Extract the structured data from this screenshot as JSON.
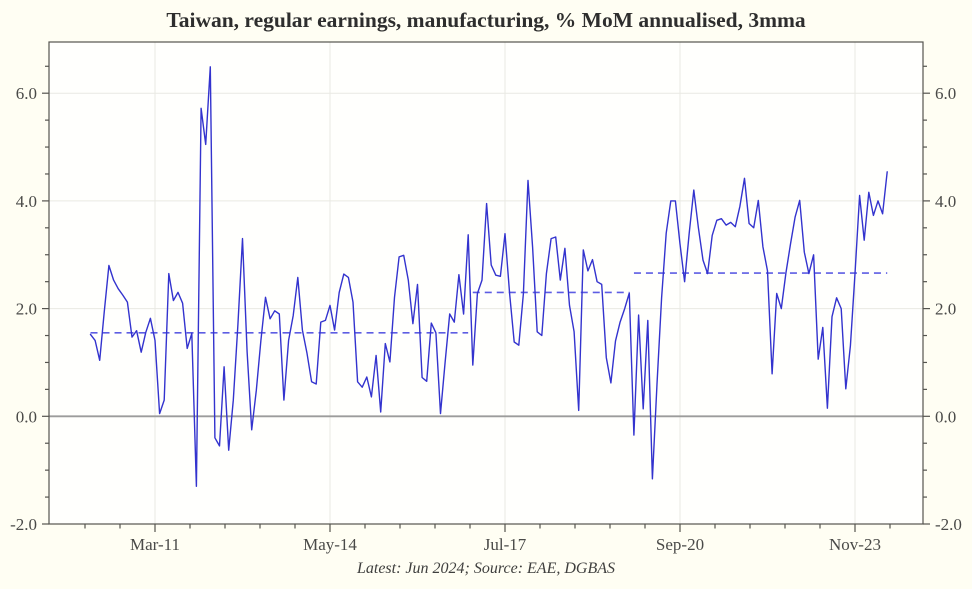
{
  "title": "Taiwan, regular earnings, manufacturing, % MoM annualised, 3mma",
  "footer": "Latest: Jun 2024; Source: EAE, DGBAS",
  "colors": {
    "background": "#FFFEF3",
    "plot_background": "#FFFFFD",
    "series": "#3333CE",
    "mean_line": "#5D5DE3",
    "zero_line": "#9C9C9C",
    "grid": "#E9E9E3",
    "frame": "#55544F",
    "title_text": "#2E2E2E",
    "tick_text": "#4A4A48",
    "footer_text": "#3F3F3E"
  },
  "chart_data": {
    "type": "line",
    "title": "Taiwan, regular earnings, manufacturing, % MoM annualised, 3mma",
    "footnote": "Latest: Jun 2024; Source: EAE, DGBAS",
    "x_unit": "month",
    "x_range": [
      "2010-01",
      "2024-06"
    ],
    "ylim": [
      -2.0,
      6.95
    ],
    "grid": true,
    "legend": "none",
    "y_major_ticks": [
      -2,
      0,
      2,
      4,
      6
    ],
    "y_tick_labels": [
      "-2.0",
      "0.0",
      "2.0",
      "4.0",
      "6.0"
    ],
    "y_minor_step": 0.5,
    "x_ticks": [
      {
        "month": "2011-03",
        "label": "Mar-11"
      },
      {
        "month": "2014-05",
        "label": "May-14"
      },
      {
        "month": "2017-07",
        "label": "Jul-17"
      },
      {
        "month": "2020-09",
        "label": "Sep-20"
      },
      {
        "month": "2023-11",
        "label": "Nov-23"
      }
    ],
    "x_minor_divisions_per_major": 5,
    "series": [
      {
        "name": "Taiwan regular earnings, manufacturing, % MoM annualised, 3mma",
        "start": "2010-01",
        "freq": "monthly",
        "values": [
          1.52,
          1.41,
          1.04,
          1.95,
          2.8,
          2.53,
          2.37,
          2.25,
          2.12,
          1.47,
          1.59,
          1.19,
          1.56,
          1.82,
          1.41,
          0.05,
          0.3,
          2.65,
          2.15,
          2.3,
          2.1,
          1.26,
          1.54,
          -1.3,
          5.72,
          5.05,
          6.49,
          -0.4,
          -0.55,
          0.92,
          -0.63,
          0.3,
          1.7,
          3.3,
          1.2,
          -0.25,
          0.48,
          1.41,
          2.21,
          1.81,
          1.96,
          1.9,
          0.3,
          1.41,
          1.87,
          2.58,
          1.6,
          1.17,
          0.64,
          0.6,
          1.75,
          1.78,
          2.06,
          1.6,
          2.3,
          2.64,
          2.58,
          2.12,
          0.64,
          0.54,
          0.73,
          0.36,
          1.13,
          0.08,
          1.35,
          1.01,
          2.21,
          2.96,
          2.99,
          2.53,
          1.72,
          2.45,
          0.72,
          0.65,
          1.73,
          1.55,
          0.05,
          1.0,
          1.9,
          1.75,
          2.63,
          1.9,
          3.37,
          0.95,
          2.28,
          2.53,
          3.95,
          2.81,
          2.62,
          2.6,
          3.39,
          2.28,
          1.38,
          1.32,
          2.28,
          4.38,
          3.14,
          1.57,
          1.5,
          2.65,
          3.3,
          3.33,
          2.53,
          3.12,
          2.06,
          1.57,
          0.11,
          3.09,
          2.7,
          2.91,
          2.5,
          2.45,
          1.09,
          0.62,
          1.4,
          1.75,
          2.0,
          2.29,
          -0.35,
          1.88,
          0.14,
          1.78,
          -1.16,
          0.6,
          2.2,
          3.4,
          4.0,
          4.0,
          3.2,
          2.5,
          3.4,
          4.2,
          3.5,
          2.9,
          2.65,
          3.36,
          3.64,
          3.67,
          3.55,
          3.6,
          3.52,
          3.9,
          4.42,
          3.58,
          3.5,
          4.01,
          3.15,
          2.7,
          0.79,
          2.28,
          2.0,
          2.66,
          3.2,
          3.7,
          4.01,
          3.05,
          2.65,
          3.0,
          1.06,
          1.65,
          0.15,
          1.85,
          2.2,
          2.0,
          0.51,
          1.31,
          2.65,
          4.1,
          3.27,
          4.16,
          3.73,
          4.0,
          3.76,
          4.54
        ]
      }
    ],
    "mean_segments": [
      {
        "start": "2010-01",
        "end": "2016-11",
        "value": 1.55
      },
      {
        "start": "2016-12",
        "end": "2019-10",
        "value": 2.3
      },
      {
        "start": "2019-11",
        "end": "2024-06",
        "value": 2.66
      }
    ]
  }
}
